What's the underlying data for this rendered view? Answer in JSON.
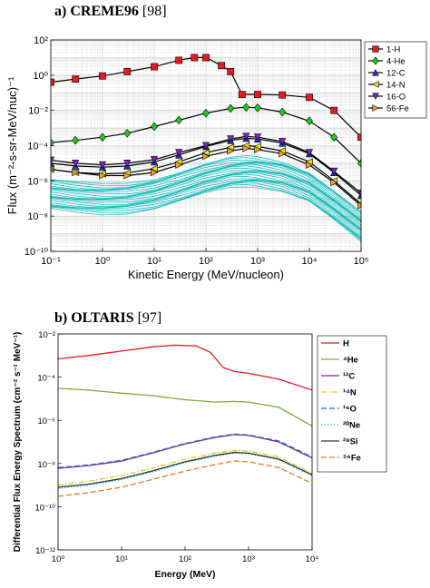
{
  "panels": {
    "a": {
      "label": "a) CREME96",
      "ref": "[98]"
    },
    "b": {
      "label": "b) OLTARIS",
      "ref": "[97]"
    }
  },
  "chart_data": [
    {
      "type": "line",
      "panel": "a",
      "xlabel": "Kinetic Energy (MeV/nucleon)",
      "ylabel": "Flux (m⁻²-s-sr-MeV/nuc)⁻¹",
      "xscale": "log",
      "yscale": "log",
      "xlim": [
        0.1,
        100000
      ],
      "ylim": [
        1e-10,
        100
      ],
      "xticks": [
        "10⁻¹",
        "10⁰",
        "10¹",
        "10²",
        "10³",
        "10⁴",
        "10⁵"
      ],
      "yticks": [
        "10⁻¹⁰",
        "10⁻⁸",
        "10⁻⁶",
        "10⁻⁴",
        "10⁻²",
        "10⁰",
        "10²"
      ],
      "grid": true,
      "legend": "top-right",
      "background_color": "#00b7b7",
      "series": [
        {
          "name": "1-H",
          "color": "#000000",
          "marker": "square",
          "marker_color": "#e8191f",
          "x": [
            0.1,
            0.3,
            1,
            3,
            10,
            30,
            60,
            100,
            200,
            300,
            500,
            1000,
            3000,
            10000,
            30000,
            100000
          ],
          "y": [
            0.4,
            0.6,
            0.9,
            1.6,
            3,
            7,
            10,
            10,
            3.5,
            1.6,
            0.08,
            0.08,
            0.075,
            0.055,
            0.01,
            0.0003
          ]
        },
        {
          "name": "4-He",
          "color": "#000000",
          "marker": "diamond",
          "marker_color": "#1bd11b",
          "x": [
            0.1,
            0.3,
            1,
            3,
            10,
            30,
            100,
            300,
            600,
            1000,
            3000,
            10000,
            30000,
            100000
          ],
          "y": [
            0.00015,
            0.0002,
            0.0003,
            0.0005,
            0.0012,
            0.0028,
            0.007,
            0.013,
            0.015,
            0.014,
            0.008,
            0.0025,
            0.0003,
            1e-05
          ]
        },
        {
          "name": "12-C",
          "color": "#000000",
          "marker": "triangle-up",
          "marker_color": "#1f38c9",
          "x": [
            0.1,
            0.3,
            1,
            3,
            10,
            30,
            100,
            300,
            600,
            1000,
            3000,
            10000,
            30000,
            100000
          ],
          "y": [
            1e-05,
            7e-06,
            6e-06,
            7e-06,
            1.2e-05,
            3e-05,
            9e-05,
            0.0002,
            0.00026,
            0.00024,
            0.00014,
            3.5e-05,
            3e-06,
            1.5e-07
          ]
        },
        {
          "name": "14-N",
          "color": "#000000",
          "marker": "triangle-left",
          "marker_color": "#e6e619",
          "x": [
            0.1,
            0.3,
            1,
            3,
            10,
            30,
            100,
            300,
            600,
            1000,
            3000,
            10000,
            30000,
            100000
          ],
          "y": [
            4.5e-06,
            3e-06,
            2.5e-06,
            2.8e-06,
            5e-06,
            1.2e-05,
            4e-05,
            8e-05,
            0.0001,
            9e-05,
            5e-05,
            1.2e-05,
            1e-06,
            5e-08
          ]
        },
        {
          "name": "16-O",
          "color": "#000000",
          "marker": "triangle-down",
          "marker_color": "#8a1fc9",
          "x": [
            0.1,
            0.3,
            1,
            3,
            10,
            30,
            100,
            300,
            600,
            1000,
            3000,
            10000,
            30000,
            100000
          ],
          "y": [
            1.5e-05,
            1e-05,
            8e-06,
            1e-05,
            1.6e-05,
            4e-05,
            0.0001,
            0.00024,
            0.00033,
            0.0003,
            0.00017,
            4e-05,
            3.5e-06,
            2e-07
          ]
        },
        {
          "name": "56-Fe",
          "color": "#000000",
          "marker": "triangle-right",
          "marker_color": "#f2a21f",
          "x": [
            0.1,
            0.3,
            1,
            3,
            10,
            30,
            100,
            300,
            600,
            1000,
            3000,
            10000,
            30000,
            100000
          ],
          "y": [
            4.5e-06,
            3e-06,
            2e-06,
            2e-06,
            3e-06,
            8e-06,
            2.5e-05,
            5e-05,
            7e-05,
            6e-05,
            3.5e-05,
            8e-06,
            8e-07,
            4e-08
          ]
        }
      ]
    },
    {
      "type": "line",
      "panel": "b",
      "xlabel": "Energy (MeV)",
      "ylabel": "Differential Flux Energy Spectrum (cm⁻² s⁻¹ MeV⁻¹)",
      "xscale": "log",
      "yscale": "log",
      "xlim": [
        1,
        10000
      ],
      "ylim": [
        1e-12,
        0.01
      ],
      "xticks": [
        "10⁰",
        "10¹",
        "10²",
        "10³",
        "10⁴"
      ],
      "yticks": [
        "10⁻¹²",
        "10⁻¹⁰",
        "10⁻⁸",
        "10⁻⁶",
        "10⁻⁴",
        "10⁻²"
      ],
      "grid": false,
      "legend": "right",
      "series": [
        {
          "name": "H",
          "color": "#e8191f",
          "dash": "solid",
          "x": [
            1,
            3,
            10,
            30,
            70,
            150,
            250,
            400,
            600,
            1000,
            3000,
            10000
          ],
          "y": [
            0.0007,
            0.001,
            0.0016,
            0.0025,
            0.003,
            0.0028,
            0.0014,
            0.00028,
            0.00018,
            0.00015,
            8e-05,
            2.5e-05
          ]
        },
        {
          "name": "⁴He",
          "color": "#7ba83c",
          "dash": "solid",
          "x": [
            1,
            3,
            10,
            30,
            100,
            300,
            600,
            1000,
            3000,
            10000
          ],
          "y": [
            3e-05,
            2.5e-05,
            1.8e-05,
            1.4e-05,
            9e-06,
            7e-06,
            7.5e-06,
            7e-06,
            4e-06,
            5.5e-07
          ]
        },
        {
          "name": "¹²C",
          "color": "#7b2c8a",
          "dash": "solid",
          "x": [
            1,
            3,
            10,
            30,
            100,
            300,
            600,
            1000,
            3000,
            10000
          ],
          "y": [
            6e-09,
            8e-09,
            1.3e-08,
            3e-08,
            8e-08,
            1.6e-07,
            2.2e-07,
            2e-07,
            1e-07,
            1.8e-08
          ]
        },
        {
          "name": "¹⁴N",
          "color": "#e6c619",
          "dash": "dashdot",
          "x": [
            1,
            3,
            10,
            30,
            100,
            300,
            600,
            1000,
            3000,
            10000
          ],
          "y": [
            1e-09,
            1.5e-09,
            2.8e-09,
            6e-09,
            1.6e-08,
            3e-08,
            4e-08,
            3.8e-08,
            2e-08,
            3.5e-09
          ]
        },
        {
          "name": "¹⁶O",
          "color": "#1f68c9",
          "dash": "dashed",
          "x": [
            1,
            3,
            10,
            30,
            100,
            300,
            600,
            1000,
            3000,
            10000
          ],
          "y": [
            6.5e-09,
            8.5e-09,
            1.4e-08,
            3.2e-08,
            8.5e-08,
            1.7e-07,
            2.3e-07,
            2.1e-07,
            1.1e-07,
            2e-08
          ]
        },
        {
          "name": "²⁰Ne",
          "color": "#19c9e6",
          "dash": "dotted",
          "x": [
            1,
            3,
            10,
            30,
            100,
            300,
            600,
            1000,
            3000,
            10000
          ],
          "y": [
            7e-10,
            1e-09,
            1.8e-09,
            4e-09,
            1.1e-08,
            2.2e-08,
            3e-08,
            2.8e-08,
            1.5e-08,
            2.7e-09
          ]
        },
        {
          "name": "²⁸Si",
          "color": "#333333",
          "dash": "solid",
          "x": [
            1,
            3,
            10,
            30,
            100,
            300,
            600,
            1000,
            3000,
            10000
          ],
          "y": [
            8e-10,
            1.1e-09,
            2e-09,
            4.5e-09,
            1.2e-08,
            2.4e-08,
            3.3e-08,
            3e-08,
            1.6e-08,
            3e-09
          ]
        },
        {
          "name": "⁵⁶Fe",
          "color": "#e07a1f",
          "dash": "dashed",
          "x": [
            1,
            3,
            10,
            30,
            100,
            300,
            600,
            1000,
            3000,
            10000
          ],
          "y": [
            3e-10,
            4.5e-10,
            8e-10,
            1.8e-09,
            4.5e-09,
            9e-09,
            1.3e-08,
            1.2e-08,
            6.5e-09,
            1.2e-09
          ]
        }
      ]
    }
  ]
}
